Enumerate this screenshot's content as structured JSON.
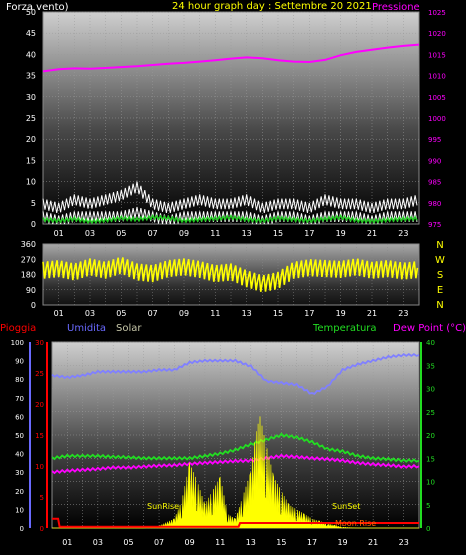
{
  "chart_data": [
    {
      "type": "line",
      "title": "24 hour graph day : Settembre 20 2021",
      "left_label": "Forza vento)",
      "right_label": "Pressione",
      "x_ticks": [
        "01",
        "03",
        "05",
        "07",
        "09",
        "11",
        "13",
        "15",
        "17",
        "19",
        "21",
        "23"
      ],
      "y_left_ticks": [
        "0",
        "5",
        "10",
        "15",
        "20",
        "25",
        "30",
        "35",
        "40",
        "45",
        "50"
      ],
      "y_right_ticks": [
        "975",
        "980",
        "985",
        "990",
        "995",
        "1000",
        "1005",
        "1010",
        "1015",
        "1020",
        "1025"
      ],
      "ylim_left": [
        0,
        50
      ],
      "ylim_right": [
        975,
        1025
      ],
      "series": [
        {
          "name": "Pressione",
          "color": "#ff00ff",
          "axis": "right",
          "x": [
            0,
            1,
            2,
            3,
            4,
            5,
            6,
            7,
            8,
            9,
            10,
            11,
            12,
            13,
            14,
            15,
            16,
            17,
            18,
            19,
            20,
            21,
            22,
            23,
            24
          ],
          "values": [
            1011.0,
            1011.5,
            1011.7,
            1011.6,
            1011.8,
            1012.0,
            1012.2,
            1012.5,
            1012.8,
            1013.0,
            1013.3,
            1013.6,
            1014.0,
            1014.3,
            1014.1,
            1013.6,
            1013.3,
            1013.2,
            1013.7,
            1014.8,
            1015.6,
            1016.1,
            1016.6,
            1017.0,
            1017.3
          ]
        },
        {
          "name": "Raffica",
          "color": "#ffffff",
          "axis": "left",
          "x": [
            0,
            1,
            2,
            3,
            4,
            5,
            6,
            7,
            8,
            9,
            10,
            11,
            12,
            13,
            14,
            15,
            16,
            17,
            18,
            19,
            20,
            21,
            22,
            23,
            24
          ],
          "values": [
            6,
            5,
            7,
            6,
            7,
            8,
            10,
            6,
            5,
            6,
            7,
            6,
            6,
            7,
            5,
            6,
            6,
            5,
            7,
            6,
            6,
            5,
            6,
            6,
            7
          ]
        },
        {
          "name": "Vento",
          "color": "#ffffff",
          "axis": "left",
          "x": [
            0,
            1,
            2,
            3,
            4,
            5,
            6,
            7,
            8,
            9,
            10,
            11,
            12,
            13,
            14,
            15,
            16,
            17,
            18,
            19,
            20,
            21,
            22,
            23,
            24
          ],
          "values": [
            3,
            2,
            3,
            3,
            3,
            3,
            4,
            3,
            2,
            3,
            3,
            3,
            3,
            3,
            2,
            3,
            3,
            2,
            3,
            3,
            3,
            2,
            3,
            3,
            3
          ]
        },
        {
          "name": "Vento medio",
          "color": "#22cc22",
          "axis": "left",
          "x": [
            0,
            1,
            2,
            3,
            4,
            5,
            6,
            7,
            8,
            9,
            10,
            11,
            12,
            13,
            14,
            15,
            16,
            17,
            18,
            19,
            20,
            21,
            22,
            23,
            24
          ],
          "values": [
            1.5,
            1.2,
            1.6,
            1.0,
            1.3,
            1.8,
            1.5,
            2.0,
            1.8,
            1.2,
            1.5,
            1.7,
            2.0,
            1.5,
            1.2,
            1.8,
            1.5,
            1.2,
            1.6,
            2.0,
            1.3,
            1.1,
            1.4,
            1.6,
            1.7
          ]
        }
      ]
    },
    {
      "type": "line",
      "title": "",
      "y_ticks": [
        "0",
        "90",
        "180",
        "270",
        "360"
      ],
      "ylim": [
        0,
        360
      ],
      "direction_labels": [
        "N",
        "W",
        "S",
        "E",
        "N"
      ],
      "x_ticks": [
        "01",
        "03",
        "05",
        "07",
        "09",
        "11",
        "13",
        "15",
        "17",
        "19",
        "21",
        "23"
      ],
      "series": [
        {
          "name": "Direzione vento",
          "color": "#ffff00",
          "x": [
            0,
            1,
            2,
            3,
            4,
            5,
            6,
            7,
            8,
            9,
            10,
            11,
            12,
            13,
            14,
            15,
            16,
            17,
            18,
            19,
            20,
            21,
            22,
            23,
            24
          ],
          "values": [
            200,
            210,
            190,
            220,
            200,
            230,
            190,
            180,
            210,
            220,
            205,
            180,
            190,
            150,
            120,
            140,
            200,
            215,
            210,
            205,
            220,
            200,
            210,
            195,
            205
          ]
        }
      ]
    },
    {
      "type": "line",
      "title": "",
      "legend": [
        "Pioggia",
        "Umidita",
        "Solar",
        "Temperatura",
        "Dew Point (°C)"
      ],
      "legend_colors": [
        "#ff0000",
        "#6a6aff",
        "#c8c8aa",
        "#22dd22",
        "#ff00ff"
      ],
      "y_left_ticks": [
        "0",
        "10",
        "20",
        "30",
        "40",
        "50",
        "60",
        "70",
        "80",
        "90",
        "100"
      ],
      "y_rain_ticks": [
        "0",
        "5",
        "10",
        "15",
        "20",
        "25",
        "30"
      ],
      "y_right_ticks": [
        "0",
        "5",
        "10",
        "15",
        "20",
        "25",
        "30",
        "35",
        "40"
      ],
      "ylim_humidity": [
        0,
        100
      ],
      "ylim_temp": [
        0,
        40
      ],
      "x_ticks": [
        "01",
        "03",
        "05",
        "07",
        "09",
        "11",
        "13",
        "15",
        "17",
        "19",
        "21",
        "23"
      ],
      "annotations": [
        "SunRise",
        "SunSet",
        "Moon Rise"
      ],
      "series": [
        {
          "name": "Umidita",
          "color": "#8080ff",
          "axis": "humidity",
          "x": [
            0,
            1,
            2,
            3,
            4,
            5,
            6,
            7,
            8,
            9,
            10,
            11,
            12,
            13,
            14,
            15,
            16,
            17,
            18,
            19,
            20,
            21,
            22,
            23,
            24
          ],
          "values": [
            82,
            81,
            82,
            84,
            84,
            84,
            84,
            85,
            85,
            89,
            90,
            90,
            90,
            87,
            79,
            78,
            77,
            72,
            76,
            85,
            88,
            90,
            92,
            93,
            93
          ]
        },
        {
          "name": "Temperatura",
          "color": "#22dd22",
          "axis": "temp",
          "x": [
            0,
            1,
            2,
            3,
            4,
            5,
            6,
            7,
            8,
            9,
            10,
            11,
            12,
            13,
            14,
            15,
            16,
            17,
            18,
            19,
            20,
            21,
            22,
            23,
            24
          ],
          "values": [
            15,
            15.5,
            15.5,
            15.5,
            15.3,
            15.2,
            15,
            15,
            15,
            15,
            15.5,
            16,
            16.8,
            18,
            19,
            20,
            19.5,
            18.5,
            17,
            16.5,
            15.5,
            15,
            14.8,
            14.5,
            14.5
          ]
        },
        {
          "name": "Dew Point (°C)",
          "color": "#ff00ff",
          "axis": "temp",
          "x": [
            0,
            1,
            2,
            3,
            4,
            5,
            6,
            7,
            8,
            9,
            10,
            11,
            12,
            13,
            14,
            15,
            16,
            17,
            18,
            19,
            20,
            21,
            22,
            23,
            24
          ],
          "values": [
            12,
            12.3,
            12.5,
            12.7,
            13,
            13,
            13.2,
            13.4,
            13.5,
            13.8,
            14,
            14.2,
            14.4,
            14.5,
            15,
            15.5,
            15.3,
            15,
            14.8,
            14.5,
            14,
            13.7,
            13.5,
            13.2,
            13.3
          ]
        },
        {
          "name": "Solar",
          "color": "#ffff00",
          "axis": "temp",
          "x": [
            0,
            1,
            2,
            3,
            4,
            5,
            6,
            7,
            8,
            8.5,
            9,
            9.5,
            10,
            10.5,
            11,
            11.5,
            12,
            12.5,
            13,
            13.3,
            13.6,
            14,
            14.5,
            15,
            15.5,
            16,
            16.5,
            17,
            17.5,
            18,
            18.5,
            19,
            20,
            24
          ],
          "values": [
            0,
            0,
            0,
            0,
            0,
            0,
            0,
            0.5,
            2,
            6,
            14,
            10,
            5,
            8,
            11,
            3,
            2,
            7,
            12,
            20,
            24,
            18,
            11,
            8,
            5,
            4,
            3,
            2,
            1.5,
            1,
            0.6,
            0.2,
            0,
            0
          ]
        },
        {
          "name": "Pioggia",
          "color": "#ff0000",
          "axis": "rain",
          "x": [
            0,
            0.4,
            0.5,
            12.2,
            12.3,
            24
          ],
          "values": [
            1.5,
            1.5,
            0.2,
            0.2,
            0.8,
            0.8
          ]
        }
      ]
    }
  ]
}
